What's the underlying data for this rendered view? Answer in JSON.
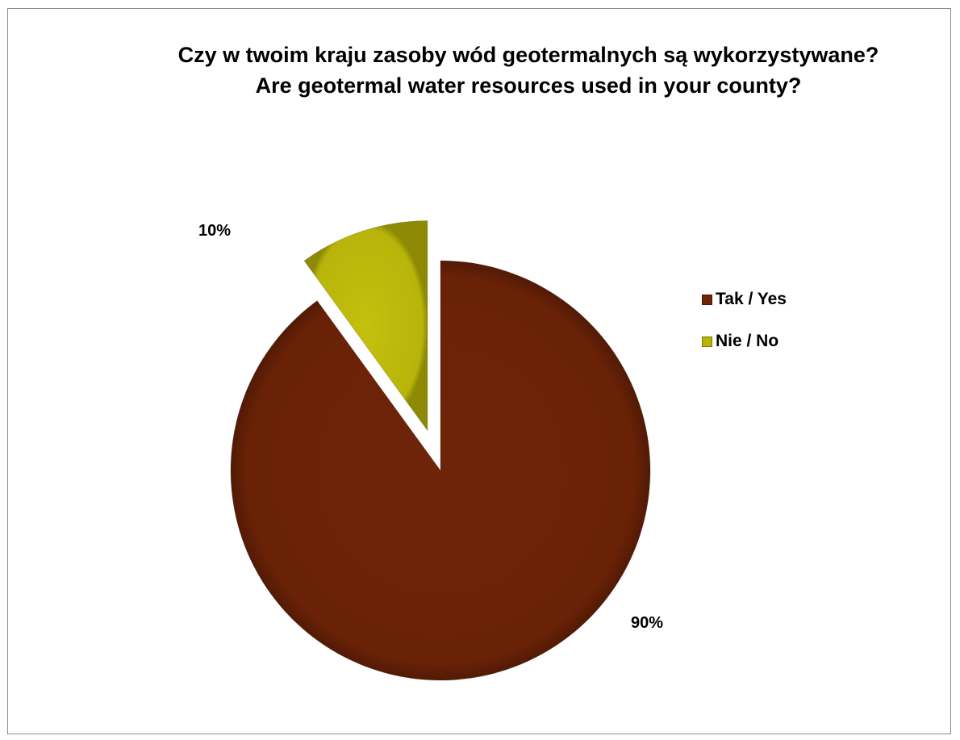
{
  "chart_data": {
    "type": "pie",
    "title_lines": [
      "Czy w twoim kraju zasoby wód geotermalnych są wykorzystywane?",
      "Are geotermal water resources used in your county?"
    ],
    "categories": [
      "Tak / Yes",
      "Nie / No"
    ],
    "values": [
      90,
      10
    ],
    "data_labels": [
      "90%",
      "10%"
    ],
    "colors": [
      "#6e2408",
      "#b8b40a"
    ],
    "exploded": [
      false,
      true
    ],
    "legend_position": "right"
  }
}
